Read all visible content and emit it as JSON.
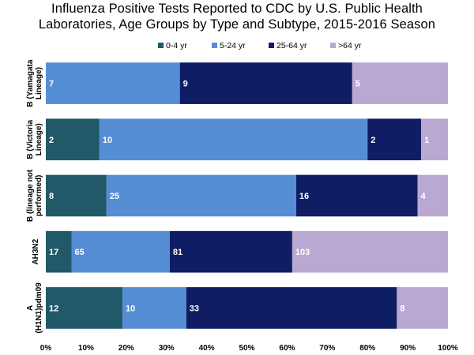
{
  "chart_data": {
    "type": "bar",
    "orientation": "horizontal",
    "stacked": "percent",
    "title_lines": [
      "Influenza Positive Tests Reported to CDC by U.S. Public Health",
      "Laboratories, Age Groups by Type and Subtype, 2015-2016 Season"
    ],
    "categories": [
      [
        "B (Yamagata",
        "Lineage)"
      ],
      [
        "B (Victoria",
        "Lineage)"
      ],
      [
        "B (lineage not",
        "performed)"
      ],
      [
        "AH3N2"
      ],
      [
        "A",
        "(H1N1)pdm09"
      ]
    ],
    "series": [
      {
        "name": "0-4 yr",
        "color": "#215968",
        "values": [
          0,
          2,
          8,
          17,
          12
        ]
      },
      {
        "name": "5-24 yr",
        "color": "#558ED5",
        "values": [
          7,
          10,
          25,
          65,
          10
        ]
      },
      {
        "name": "25-64 yr",
        "color": "#0F1E64",
        "values": [
          9,
          2,
          16,
          81,
          33
        ]
      },
      {
        "name": ">64 yr",
        "color": "#B9A8D2",
        "values": [
          5,
          1,
          4,
          103,
          8
        ]
      }
    ],
    "x_ticks": [
      "0%",
      "10%",
      "20%",
      "30%",
      "40%",
      "50%",
      "60%",
      "70%",
      "80%",
      "90%",
      "100%"
    ],
    "xlim": [
      0,
      100
    ],
    "legend_position": "top",
    "grid": false
  }
}
